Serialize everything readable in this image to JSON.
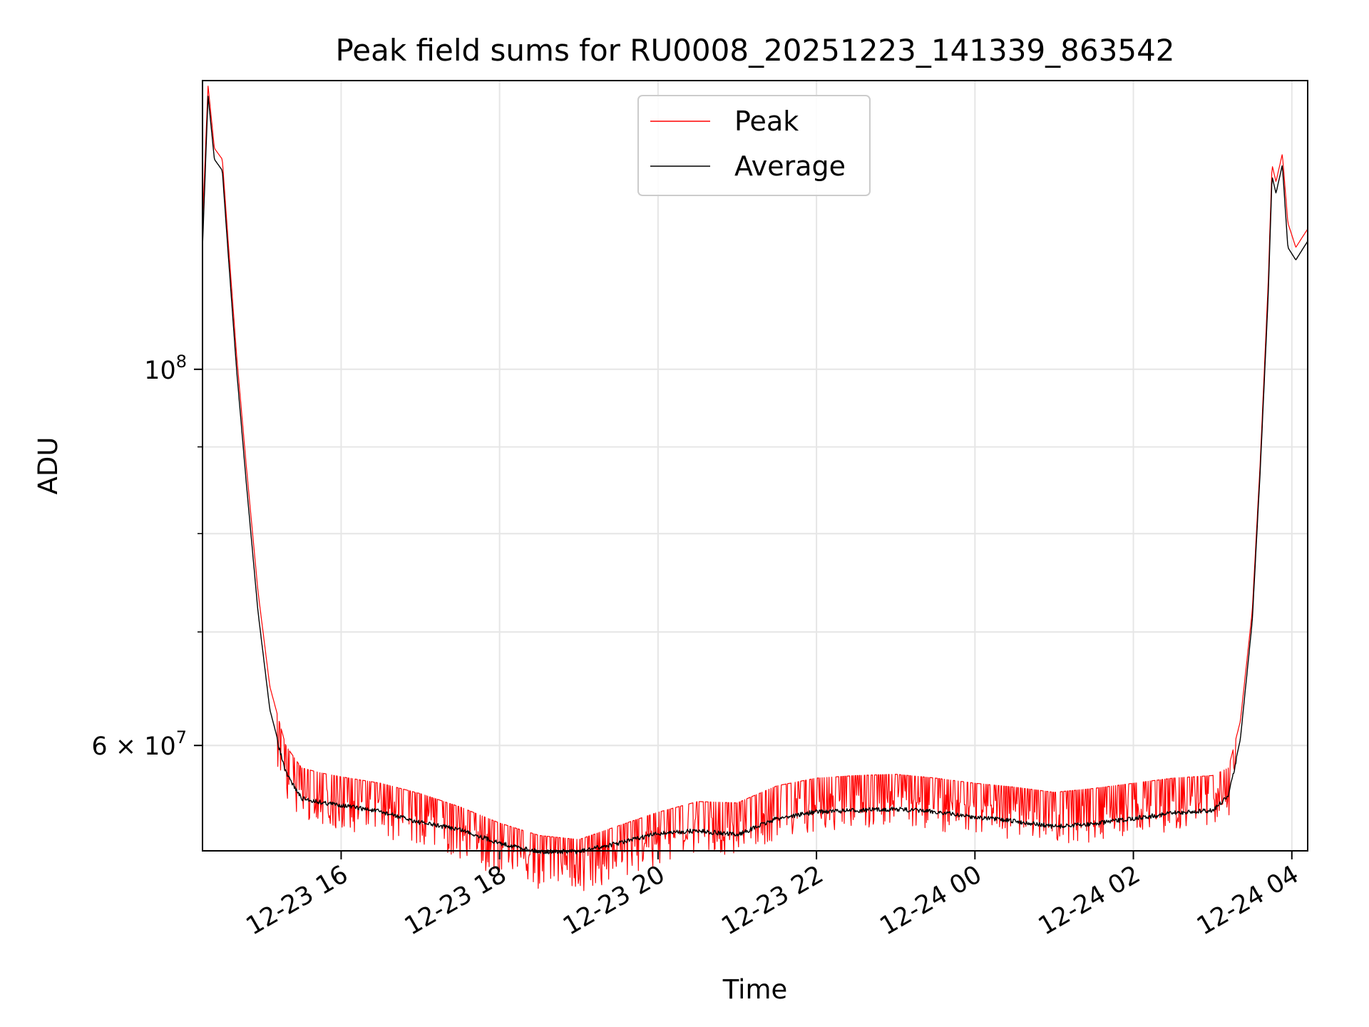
{
  "chart_data": {
    "type": "line",
    "title": "Peak field sums for RU0008_20251223_141339_863542",
    "xlabel": "Time",
    "ylabel": "ADU",
    "yscale": "log",
    "ylim": [
      52000000,
      148000000
    ],
    "xlim_hours": [
      14.25,
      28.2
    ],
    "x_unit": "hours since 2025-12-23 00:00",
    "grid": true,
    "legend_location": "upper center",
    "x_ticks": [
      {
        "value": 16,
        "label": "12-23 16"
      },
      {
        "value": 18,
        "label": "12-23 18"
      },
      {
        "value": 20,
        "label": "12-23 20"
      },
      {
        "value": 22,
        "label": "12-23 22"
      },
      {
        "value": 24,
        "label": "12-24 00"
      },
      {
        "value": 26,
        "label": "12-24 02"
      },
      {
        "value": 28,
        "label": "12-24 04"
      }
    ],
    "y_major_ticks": [
      {
        "value": 60000000,
        "mantissa": "6",
        "times": "×",
        "base": "10",
        "exp": "7"
      },
      {
        "value": 100000000,
        "mantissa": "",
        "times": "",
        "base": "10",
        "exp": "8"
      }
    ],
    "y_minor_ticks": [
      60000000,
      70000000,
      80000000,
      90000000
    ],
    "series": [
      {
        "name": "Peak",
        "color": "#ff0000",
        "x": [
          14.25,
          14.32,
          14.4,
          14.5,
          14.58,
          14.68,
          14.8,
          14.95,
          15.1,
          15.3,
          15.5,
          15.75,
          16.0,
          16.5,
          17.0,
          17.5,
          18.0,
          18.5,
          19.0,
          19.5,
          20.0,
          20.5,
          21.0,
          21.5,
          22.0,
          22.5,
          23.0,
          23.5,
          24.0,
          24.5,
          25.0,
          25.5,
          26.0,
          26.5,
          27.0,
          27.2,
          27.35,
          27.5,
          27.6,
          27.7,
          27.75,
          27.8,
          27.88,
          27.95,
          28.05,
          28.2
        ],
        "values": [
          122000000,
          147000000,
          135000000,
          133000000,
          118000000,
          102000000,
          88000000,
          74000000,
          65000000,
          60000000,
          58200000,
          57800000,
          57500000,
          57000000,
          56200000,
          55200000,
          54000000,
          53100000,
          52800000,
          53800000,
          54800000,
          55600000,
          55500000,
          56800000,
          57400000,
          57600000,
          57700000,
          57400000,
          57000000,
          56700000,
          56300000,
          56600000,
          57000000,
          57400000,
          57600000,
          58200000,
          62000000,
          72000000,
          88000000,
          112000000,
          132000000,
          129000000,
          134000000,
          122000000,
          118000000,
          121000000
        ]
      },
      {
        "name": "Average",
        "color": "#000000",
        "x": [
          14.25,
          14.32,
          14.4,
          14.5,
          14.58,
          14.68,
          14.8,
          14.95,
          15.1,
          15.3,
          15.5,
          15.75,
          16.0,
          16.5,
          17.0,
          17.5,
          18.0,
          18.5,
          19.0,
          19.5,
          20.0,
          20.5,
          21.0,
          21.5,
          22.0,
          22.5,
          23.0,
          23.5,
          24.0,
          24.5,
          25.0,
          25.5,
          26.0,
          26.5,
          27.0,
          27.2,
          27.35,
          27.5,
          27.6,
          27.7,
          27.75,
          27.8,
          27.88,
          27.95,
          28.05,
          28.2
        ],
        "values": [
          118000000,
          145000000,
          133000000,
          131000000,
          116000000,
          100000000,
          86000000,
          72000000,
          63000000,
          58000000,
          56000000,
          55700000,
          55500000,
          55000000,
          54200000,
          53700000,
          52700000,
          52100000,
          52100000,
          52700000,
          53400000,
          53600000,
          53300000,
          54500000,
          55000000,
          55100000,
          55200000,
          55000000,
          54600000,
          54300000,
          53900000,
          54100000,
          54500000,
          54900000,
          55100000,
          56200000,
          60500000,
          71000000,
          87000000,
          110000000,
          130000000,
          127000000,
          132000000,
          118000000,
          116000000,
          119000000
        ]
      }
    ]
  }
}
